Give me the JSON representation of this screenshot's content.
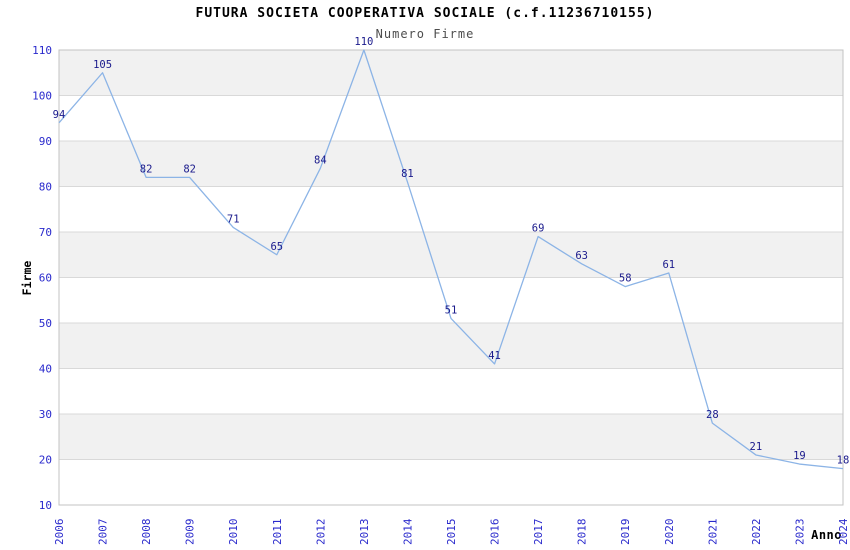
{
  "chart_data": {
    "type": "line",
    "title": "FUTURA SOCIETA COOPERATIVA SOCIALE (c.f.11236710155)",
    "subtitle": "Numero Firme",
    "xlabel": "Anno",
    "ylabel": "Firme",
    "x": [
      "2006",
      "2007",
      "2008",
      "2009",
      "2010",
      "2011",
      "2012",
      "2013",
      "2014",
      "2015",
      "2016",
      "2017",
      "2018",
      "2019",
      "2020",
      "2021",
      "2022",
      "2023",
      "2024"
    ],
    "series": [
      {
        "name": "Numero Firme",
        "values": [
          94,
          105,
          82,
          82,
          71,
          65,
          84,
          110,
          81,
          51,
          41,
          69,
          63,
          58,
          61,
          28,
          21,
          19,
          18
        ]
      }
    ],
    "ylim": [
      10,
      110
    ],
    "ytick_step": 10,
    "yticks": [
      10,
      20,
      30,
      40,
      50,
      60,
      70,
      80,
      90,
      100,
      110
    ],
    "grid": true,
    "bands_alternating": true,
    "legend_position": "none",
    "point_labels_visible": true,
    "x_tick_rotation_deg": -90,
    "colors": {
      "line": "#8cb4e6",
      "point_label": "#1a1a8c",
      "tick_label": "#2929cc",
      "band": "#f1f1f1",
      "grid_line": "#d9d9d9",
      "plot_border": "#c3c3c3",
      "title": "#000000",
      "subtitle": "#4d4d4d",
      "background": "#ffffff"
    }
  }
}
